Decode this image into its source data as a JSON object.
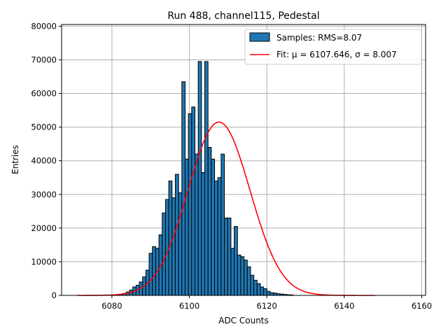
{
  "chart_data": {
    "type": "bar",
    "subtype": "histogram",
    "title": "Run 488, channel115, Pedestal",
    "xlabel": "ADC Counts",
    "ylabel": "Entries",
    "xlim": [
      6067,
      6161
    ],
    "ylim": [
      0,
      80500
    ],
    "xticks": [
      6080,
      6100,
      6120,
      6140,
      6160
    ],
    "xtick_labels": [
      "6080",
      "6100",
      "6120",
      "6140",
      "6160"
    ],
    "yticks": [
      0,
      10000,
      20000,
      30000,
      40000,
      50000,
      60000,
      70000,
      80000
    ],
    "ytick_labels": [
      "0",
      "10000",
      "20000",
      "30000",
      "40000",
      "50000",
      "60000",
      "70000",
      "80000"
    ],
    "grid": true,
    "bins_start": 6082,
    "bin_width": 0.845,
    "bar_values": [
      300,
      600,
      1000,
      1600,
      2500,
      3000,
      4000,
      5500,
      7500,
      12500,
      14500,
      14000,
      18000,
      24500,
      28500,
      34000,
      29000,
      36000,
      30500,
      63500,
      40500,
      54000,
      56000,
      42000,
      69500,
      36500,
      69500,
      44000,
      40500,
      34000,
      35000,
      42000,
      23000,
      23000,
      14000,
      20500,
      12000,
      11500,
      10500,
      8500,
      6000,
      4500,
      3500,
      2500,
      2000,
      1200,
      800,
      700,
      500,
      400,
      300,
      200,
      150
    ],
    "fit": {
      "mu": 6107.646,
      "sigma": 8.007,
      "amplitude": 51500,
      "x_range": [
        6071,
        6148
      ]
    },
    "legend": {
      "position": "upper right",
      "entries": [
        {
          "label": "Samples: RMS=8.07",
          "kind": "patch",
          "color": "#1f77b4"
        },
        {
          "label": "Fit: μ = 6107.646, σ = 8.007",
          "kind": "line",
          "color": "#ff0000"
        }
      ]
    }
  }
}
